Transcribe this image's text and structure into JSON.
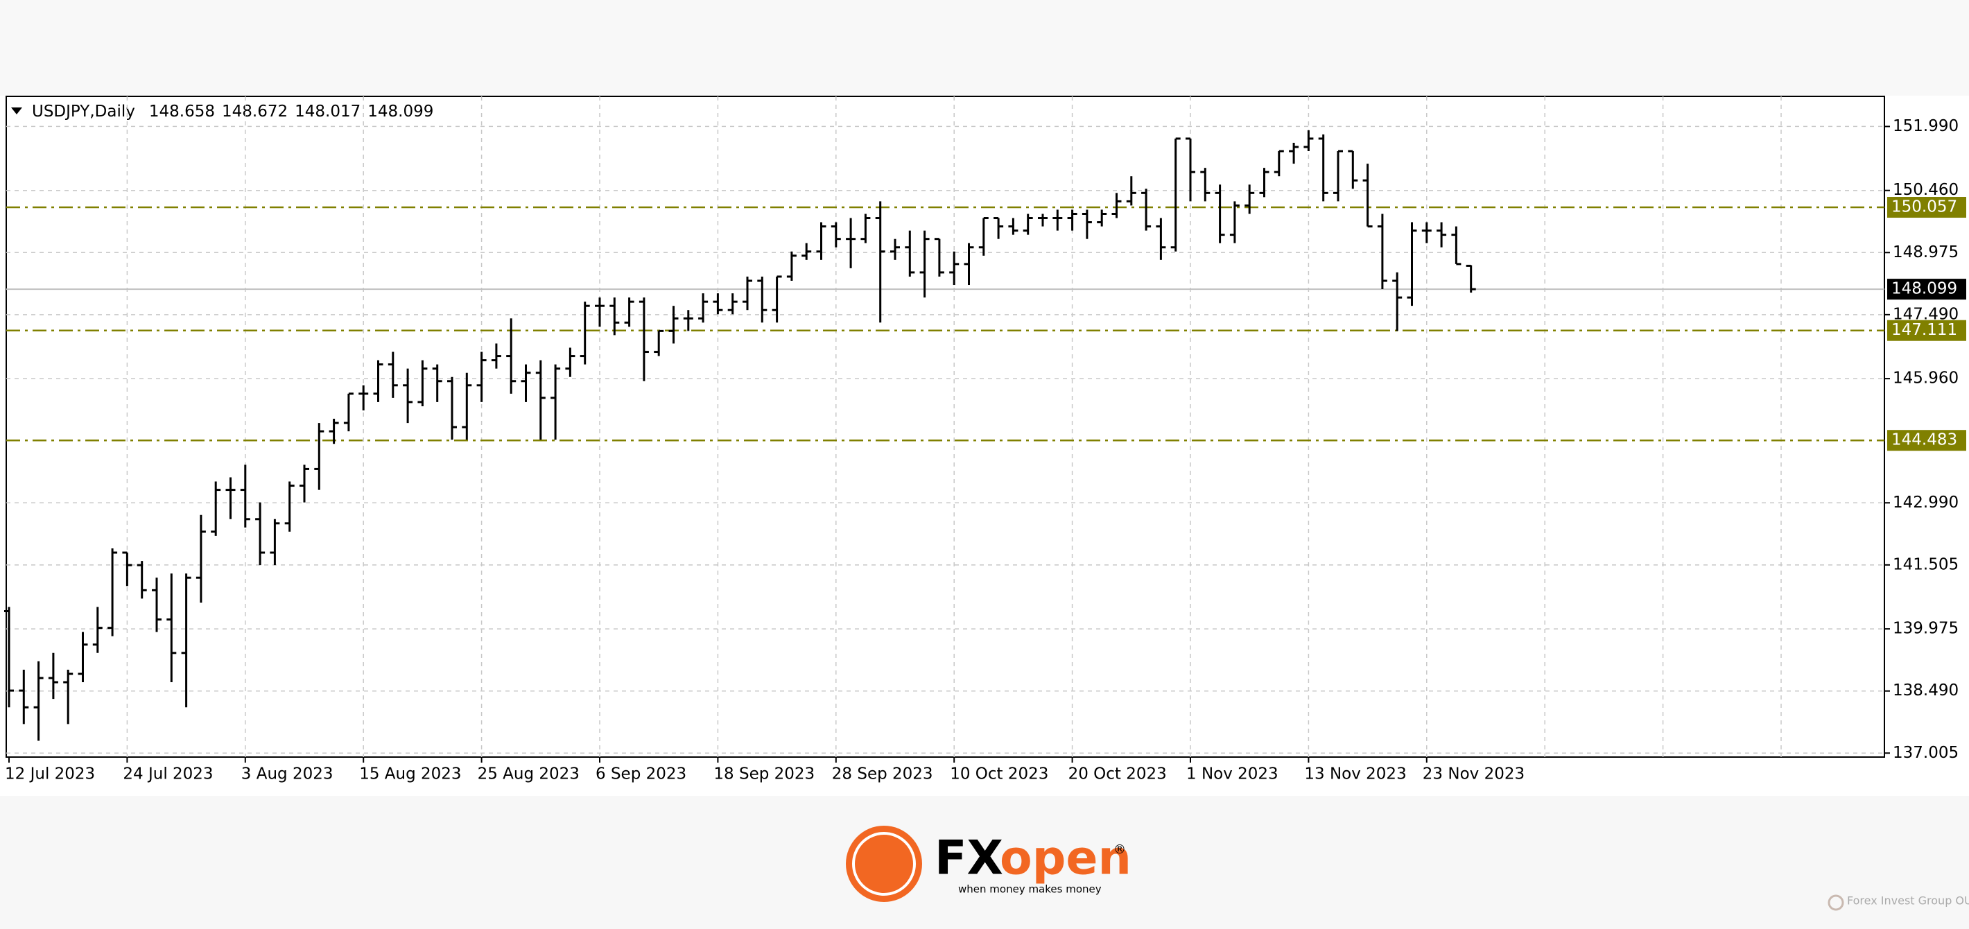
{
  "chart_data": {
    "type": "ohlc",
    "symbol": "USDJPY,Daily",
    "categories": [
      "12 Jul 2023",
      null,
      null,
      null,
      null,
      null,
      null,
      null,
      "24 Jul 2023",
      null,
      null,
      null,
      null,
      null,
      null,
      null,
      "3 Aug 2023",
      null,
      null,
      null,
      null,
      null,
      null,
      null,
      "15 Aug 2023",
      null,
      null,
      null,
      null,
      null,
      null,
      null,
      "25 Aug 2023",
      null,
      null,
      null,
      null,
      null,
      null,
      null,
      "6 Sep 2023",
      null,
      null,
      null,
      null,
      null,
      null,
      null,
      "18 Sep 2023",
      null,
      null,
      null,
      null,
      null,
      null,
      null,
      "28 Sep 2023",
      null,
      null,
      null,
      null,
      null,
      null,
      null,
      "10 Oct 2023",
      null,
      null,
      null,
      null,
      null,
      null,
      null,
      "20 Oct 2023",
      null,
      null,
      null,
      null,
      null,
      null,
      null,
      "1 Nov 2023",
      null,
      null,
      null,
      null,
      null,
      null,
      null,
      "13 Nov 2023",
      null,
      null,
      null,
      null,
      null,
      null,
      null,
      "23 Nov 2023",
      null,
      null,
      null
    ],
    "open": [
      140.4,
      138.5,
      138.1,
      138.8,
      138.7,
      138.9,
      139.6,
      140.0,
      141.8,
      141.5,
      140.9,
      140.2,
      139.4,
      141.2,
      142.3,
      143.3,
      143.3,
      142.6,
      141.8,
      142.5,
      143.4,
      143.8,
      144.7,
      144.9,
      145.6,
      145.6,
      146.3,
      145.8,
      145.4,
      146.2,
      145.9,
      144.8,
      145.8,
      146.4,
      146.5,
      145.9,
      146.1,
      145.5,
      146.2,
      146.5,
      147.7,
      147.7,
      147.3,
      147.8,
      146.6,
      147.1,
      147.4,
      147.4,
      147.8,
      147.6,
      147.8,
      148.3,
      147.6,
      148.4,
      148.9,
      149.0,
      149.6,
      149.3,
      149.3,
      149.8,
      149.0,
      149.1,
      148.5,
      149.3,
      148.5,
      148.7,
      149.1,
      149.8,
      149.6,
      149.5,
      149.8,
      149.8,
      149.8,
      149.9,
      149.7,
      149.9,
      150.2,
      150.4,
      149.6,
      149.1,
      151.7,
      150.9,
      150.4,
      149.4,
      150.1,
      150.4,
      150.9,
      151.4,
      151.5,
      151.7,
      150.4,
      151.4,
      150.7,
      149.6,
      148.3,
      147.9,
      149.5,
      149.5,
      149.4,
      148.658
    ],
    "high": [
      140.5,
      139.0,
      139.2,
      139.4,
      139.0,
      139.9,
      140.5,
      141.9,
      141.8,
      141.6,
      141.2,
      141.3,
      141.3,
      142.7,
      143.5,
      143.6,
      143.9,
      143.0,
      142.6,
      143.5,
      143.9,
      144.9,
      145.0,
      145.6,
      145.8,
      146.4,
      146.6,
      146.2,
      146.4,
      146.3,
      146.0,
      146.1,
      146.6,
      146.8,
      147.4,
      146.3,
      146.4,
      146.3,
      146.7,
      147.8,
      147.9,
      147.9,
      147.9,
      147.9,
      147.1,
      147.7,
      147.6,
      148.0,
      148.0,
      148.0,
      148.4,
      148.4,
      148.4,
      149.0,
      149.2,
      149.7,
      149.7,
      149.8,
      149.9,
      150.2,
      149.3,
      149.5,
      149.5,
      149.3,
      149.0,
      149.2,
      149.8,
      149.8,
      149.8,
      149.9,
      149.9,
      150.0,
      150.0,
      150.0,
      150.0,
      150.4,
      150.8,
      150.5,
      149.8,
      151.7,
      151.7,
      151.0,
      150.6,
      150.2,
      150.6,
      151.0,
      151.4,
      151.6,
      151.9,
      151.8,
      151.4,
      151.4,
      151.1,
      149.9,
      148.5,
      149.7,
      149.7,
      149.7,
      149.6,
      148.672
    ],
    "low": [
      138.1,
      137.7,
      137.3,
      138.3,
      137.7,
      138.7,
      139.4,
      139.8,
      141.0,
      140.7,
      139.9,
      138.7,
      138.1,
      140.6,
      142.2,
      142.6,
      142.4,
      141.5,
      141.5,
      142.3,
      143.0,
      143.3,
      144.4,
      144.7,
      145.2,
      145.4,
      145.5,
      144.9,
      145.3,
      145.4,
      144.5,
      144.5,
      145.4,
      146.2,
      145.6,
      145.4,
      144.5,
      144.5,
      146.0,
      146.3,
      147.2,
      147.0,
      147.2,
      145.9,
      146.5,
      146.8,
      147.1,
      147.3,
      147.5,
      147.5,
      147.6,
      147.3,
      147.3,
      148.3,
      148.8,
      148.8,
      149.1,
      148.6,
      149.2,
      147.3,
      148.8,
      148.4,
      147.9,
      148.4,
      148.2,
      148.2,
      148.9,
      149.3,
      149.4,
      149.4,
      149.6,
      149.5,
      149.5,
      149.3,
      149.6,
      149.8,
      150.1,
      149.5,
      148.8,
      149.0,
      150.2,
      150.2,
      149.2,
      149.2,
      149.9,
      150.3,
      150.8,
      151.1,
      151.4,
      150.2,
      150.2,
      150.5,
      149.6,
      148.1,
      147.1,
      147.7,
      149.2,
      149.1,
      148.7,
      148.017
    ],
    "close": [
      138.5,
      138.1,
      138.8,
      138.7,
      138.9,
      139.6,
      140.0,
      141.8,
      141.5,
      140.9,
      140.2,
      139.4,
      141.2,
      142.3,
      143.3,
      143.3,
      142.6,
      141.8,
      142.5,
      143.4,
      143.8,
      144.7,
      144.9,
      145.6,
      145.6,
      146.3,
      145.8,
      145.4,
      146.2,
      145.9,
      144.8,
      145.8,
      146.4,
      146.5,
      145.9,
      146.1,
      145.5,
      146.2,
      146.5,
      147.7,
      147.7,
      147.3,
      147.8,
      146.6,
      147.1,
      147.4,
      147.4,
      147.8,
      147.6,
      147.8,
      148.3,
      147.6,
      148.4,
      148.9,
      149.0,
      149.6,
      149.3,
      149.3,
      149.8,
      149.0,
      149.1,
      148.5,
      149.3,
      148.5,
      148.7,
      149.1,
      149.8,
      149.6,
      149.5,
      149.8,
      149.8,
      149.8,
      149.9,
      149.7,
      149.9,
      150.2,
      150.4,
      149.6,
      149.1,
      151.7,
      150.9,
      150.4,
      149.4,
      150.1,
      150.4,
      150.9,
      151.4,
      151.5,
      151.7,
      150.4,
      151.4,
      150.7,
      149.6,
      148.3,
      147.9,
      149.5,
      149.5,
      149.4,
      148.7,
      148.099
    ],
    "bar_color": "#000000",
    "ylim": [
      136.91,
      152.71
    ],
    "yticks": [
      {
        "value": 151.99,
        "label": "151.990"
      },
      {
        "value": 150.46,
        "label": "150.460"
      },
      148.975,
      {
        "value": 147.49,
        "label": "147.490"
      },
      {
        "value": 145.96,
        "label": "145.960"
      },
      {
        "value": 142.99,
        "label": "142.990"
      },
      141.505,
      139.975,
      {
        "value": 138.49,
        "label": "138.490"
      },
      137.005
    ],
    "grid": true,
    "levels": [
      150.057,
      147.111,
      144.483
    ],
    "level_color": "#808000"
  },
  "footer": {
    "brand_fx": "FX",
    "brand_open": "open",
    "registered": "®",
    "tagline": "when money makes money",
    "watermark": "Forex Invest Group OU"
  }
}
